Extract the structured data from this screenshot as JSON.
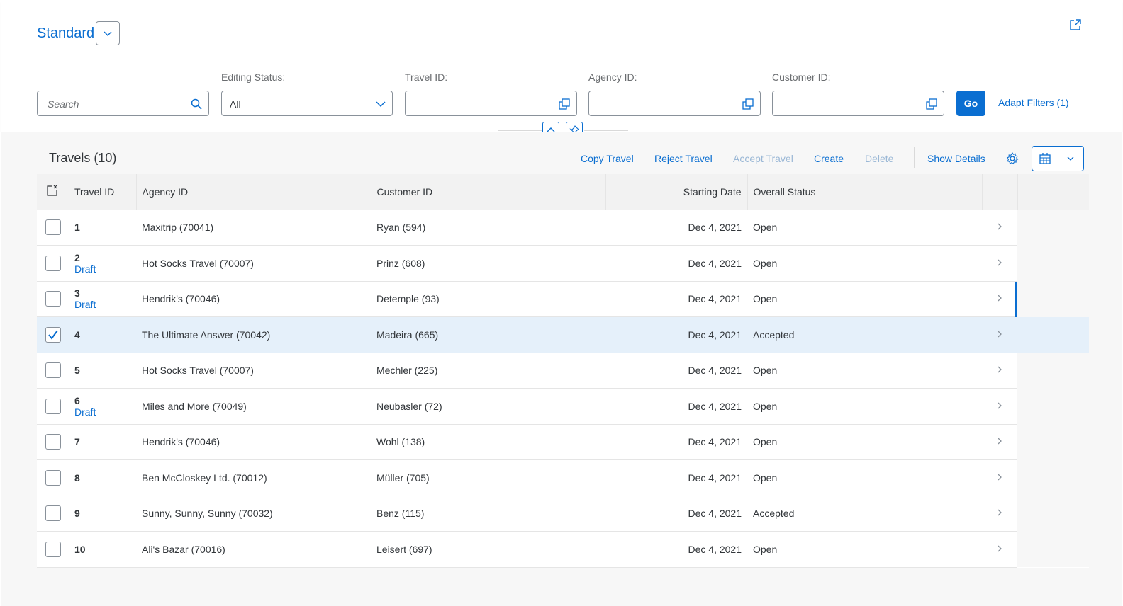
{
  "variant": {
    "title": "Standard"
  },
  "filters": {
    "search_placeholder": "Search",
    "editing_status": {
      "label": "Editing Status:",
      "value": "All"
    },
    "travel_id": {
      "label": "Travel ID:",
      "value": ""
    },
    "agency_id": {
      "label": "Agency ID:",
      "value": ""
    },
    "customer_id": {
      "label": "Customer ID:",
      "value": ""
    },
    "go_label": "Go",
    "adapt_label": "Adapt Filters (1)"
  },
  "toolbar": {
    "title": "Travels (10)",
    "copy": "Copy Travel",
    "reject": "Reject Travel",
    "accept": "Accept Travel",
    "create": "Create",
    "delete": "Delete",
    "show_details": "Show Details"
  },
  "table": {
    "headers": [
      "Travel ID",
      "Agency ID",
      "Customer ID",
      "Starting Date",
      "Overall Status"
    ],
    "rows": [
      {
        "id": "1",
        "draft": "",
        "agency": "Maxitrip (70041)",
        "customer": "Ryan (594)",
        "date": "Dec 4, 2021",
        "status": "Open",
        "selected": false
      },
      {
        "id": "2",
        "draft": "Draft",
        "agency": "Hot Socks Travel (70007)",
        "customer": "Prinz (608)",
        "date": "Dec 4, 2021",
        "status": "Open",
        "selected": false
      },
      {
        "id": "3",
        "draft": "Draft",
        "agency": "Hendrik's (70046)",
        "customer": "Detemple (93)",
        "date": "Dec 4, 2021",
        "status": "Open",
        "selected": false
      },
      {
        "id": "4",
        "draft": "",
        "agency": "The Ultimate Answer (70042)",
        "customer": "Madeira (665)",
        "date": "Dec 4, 2021",
        "status": "Accepted",
        "selected": true
      },
      {
        "id": "5",
        "draft": "",
        "agency": "Hot Socks Travel (70007)",
        "customer": "Mechler (225)",
        "date": "Dec 4, 2021",
        "status": "Open",
        "selected": false
      },
      {
        "id": "6",
        "draft": "Draft",
        "agency": "Miles and More (70049)",
        "customer": "Neubasler (72)",
        "date": "Dec 4, 2021",
        "status": "Open",
        "selected": false
      },
      {
        "id": "7",
        "draft": "",
        "agency": "Hendrik's (70046)",
        "customer": "Wohl (138)",
        "date": "Dec 4, 2021",
        "status": "Open",
        "selected": false
      },
      {
        "id": "8",
        "draft": "",
        "agency": "Ben McCloskey Ltd. (70012)",
        "customer": "Müller (705)",
        "date": "Dec 4, 2021",
        "status": "Open",
        "selected": false
      },
      {
        "id": "9",
        "draft": "",
        "agency": "Sunny, Sunny, Sunny (70032)",
        "customer": "Benz (115)",
        "date": "Dec 4, 2021",
        "status": "Accepted",
        "selected": false
      },
      {
        "id": "10",
        "draft": "",
        "agency": "Ali's Bazar (70016)",
        "customer": "Leisert (697)",
        "date": "Dec 4, 2021",
        "status": "Open",
        "selected": false
      }
    ]
  },
  "icons": {
    "share": "share-icon",
    "variant_dropdown": "chevron-down-icon",
    "search": "search-icon",
    "select_dropdown": "chevron-down-icon",
    "value_help": "value-help-icon",
    "collapse": "chevron-up-icon",
    "pin": "pin-icon",
    "settings": "gear-icon",
    "export": "spreadsheet-icon",
    "row_nav": "chevron-right-icon"
  },
  "colors": {
    "accent": "#0a6ed1",
    "selected_row": "#e5f0fa",
    "text": "#32363a"
  }
}
